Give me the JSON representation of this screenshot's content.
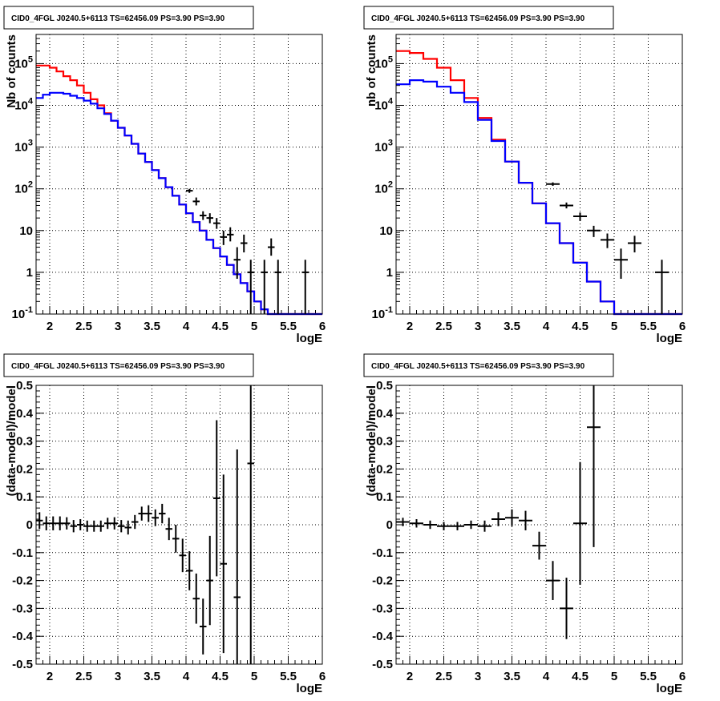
{
  "chart_data": [
    {
      "type": "line",
      "title": "CID0_4FGL J0240.5+6113 TS=62456.09 PS=3.90 PS=3.90",
      "xlabel": "logE",
      "ylabel": "Nb of counts",
      "xlim": [
        1.8,
        6
      ],
      "ylim": [
        0.1,
        500000
      ],
      "yscale": "log",
      "grid": true,
      "x_ticks": [
        "2",
        "2.5",
        "3",
        "3.5",
        "4",
        "4.5",
        "5",
        "5.5",
        "6"
      ],
      "y_ticks": [
        "10^-1",
        "1",
        "10",
        "10^2",
        "10^3",
        "10^4",
        "10^5"
      ],
      "bin_edges": [
        1.8,
        1.9,
        2.0,
        2.1,
        2.2,
        2.3,
        2.4,
        2.5,
        2.6,
        2.7,
        2.8,
        2.9,
        3.0,
        3.1,
        3.2,
        3.3,
        3.4,
        3.5,
        3.6,
        3.7,
        3.8,
        3.9,
        4.0,
        4.1,
        4.2,
        4.3,
        4.4,
        4.5,
        4.6,
        4.7,
        4.8,
        4.9,
        5.0,
        5.1,
        5.2,
        5.3,
        5.4,
        5.5,
        5.6,
        5.7,
        5.8,
        5.9,
        6.0
      ],
      "series": [
        {
          "color": "#ff0000",
          "values": [
            90000,
            90000,
            80000,
            65000,
            50000,
            40000,
            30000,
            20000,
            14000,
            10000,
            6500,
            4300,
            2900,
            1900,
            1200,
            700,
            440,
            280,
            180,
            110,
            68,
            42,
            26,
            16,
            10,
            6,
            3.8,
            2.4,
            1.5,
            0.9,
            0.55,
            0.35,
            0.2,
            0.13,
            0.1,
            0.1,
            0.1,
            0.1,
            0.1,
            0.1,
            0.1,
            0.1
          ]
        },
        {
          "color": "#0000ff",
          "values": [
            15000,
            18000,
            20000,
            20000,
            19000,
            17000,
            15000,
            13000,
            11000,
            8500,
            6200,
            4300,
            2900,
            1900,
            1200,
            700,
            440,
            280,
            180,
            110,
            68,
            42,
            26,
            16,
            10,
            6,
            3.8,
            2.4,
            1.5,
            0.9,
            0.55,
            0.35,
            0.2,
            0.13,
            0.1,
            0.1,
            0.1,
            0.1,
            0.1,
            0.1,
            0.1,
            0.1
          ]
        }
      ],
      "data_points": [
        {
          "x": 4.05,
          "y": 90,
          "yerr": [
            80,
            100
          ]
        },
        {
          "x": 4.15,
          "y": 50,
          "yerr": [
            40,
            62
          ]
        },
        {
          "x": 4.25,
          "y": 23,
          "yerr": [
            18,
            29
          ]
        },
        {
          "x": 4.35,
          "y": 20,
          "yerr": [
            15,
            26
          ]
        },
        {
          "x": 4.45,
          "y": 15,
          "yerr": [
            11,
            20
          ]
        },
        {
          "x": 4.55,
          "y": 7,
          "yerr": [
            4.5,
            10
          ]
        },
        {
          "x": 4.65,
          "y": 8,
          "yerr": [
            5.5,
            12
          ]
        },
        {
          "x": 4.75,
          "y": 2,
          "yerr": [
            0.7,
            4
          ]
        },
        {
          "x": 4.85,
          "y": 5,
          "yerr": [
            3,
            8
          ]
        },
        {
          "x": 4.95,
          "y": 1,
          "yerr": [
            0.1,
            2
          ]
        },
        {
          "x": 5.15,
          "y": 1,
          "yerr": [
            0.1,
            2
          ]
        },
        {
          "x": 5.25,
          "y": 4,
          "yerr": [
            2.5,
            6.5
          ]
        },
        {
          "x": 5.35,
          "y": 1,
          "yerr": [
            0.1,
            2
          ]
        },
        {
          "x": 5.75,
          "y": 1,
          "yerr": [
            0.1,
            2
          ]
        }
      ]
    },
    {
      "type": "line",
      "title": "CID0_4FGL J0240.5+6113 TS=62456.09 PS=3.90 PS=3.90",
      "xlabel": "logE",
      "ylabel": "nb of counts",
      "xlim": [
        1.8,
        6
      ],
      "ylim": [
        0.1,
        500000
      ],
      "yscale": "log",
      "grid": true,
      "x_ticks": [
        "2",
        "2.5",
        "3",
        "3.5",
        "4",
        "4.5",
        "5",
        "5.5",
        "6"
      ],
      "y_ticks": [
        "10^-1",
        "1",
        "10",
        "10^2",
        "10^3",
        "10^4",
        "10^5"
      ],
      "bin_edges": [
        1.8,
        2.0,
        2.2,
        2.4,
        2.6,
        2.8,
        3.0,
        3.2,
        3.4,
        3.6,
        3.8,
        4.0,
        4.2,
        4.4,
        4.6,
        4.8,
        5.0,
        5.2,
        5.4,
        5.6,
        5.8,
        6.0
      ],
      "series": [
        {
          "color": "#ff0000",
          "values": [
            200000,
            180000,
            130000,
            80000,
            40000,
            15000,
            5000,
            1500,
            450,
            140,
            45,
            15,
            5,
            1.7,
            0.6,
            0.2,
            0.1,
            0.1,
            0.1,
            0.1,
            0.1
          ]
        },
        {
          "color": "#0000ff",
          "values": [
            32000,
            40000,
            37000,
            28000,
            20000,
            12000,
            4500,
            1400,
            450,
            140,
            45,
            15,
            5,
            1.7,
            0.6,
            0.2,
            0.1,
            0.1,
            0.1,
            0.1,
            0.1
          ]
        }
      ],
      "data_points": [
        {
          "x": 4.1,
          "y": 130,
          "yerr": [
            118,
            143
          ]
        },
        {
          "x": 4.3,
          "y": 40,
          "yerr": [
            34,
            47
          ]
        },
        {
          "x": 4.5,
          "y": 22,
          "yerr": [
            17,
            27
          ]
        },
        {
          "x": 4.7,
          "y": 10,
          "yerr": [
            7,
            13
          ]
        },
        {
          "x": 4.9,
          "y": 6,
          "yerr": [
            3.8,
            8.5
          ]
        },
        {
          "x": 5.1,
          "y": 2,
          "yerr": [
            0.7,
            3.7
          ]
        },
        {
          "x": 5.3,
          "y": 5,
          "yerr": [
            3,
            7.5
          ]
        },
        {
          "x": 5.7,
          "y": 1,
          "yerr": [
            0.1,
            2
          ]
        }
      ]
    },
    {
      "type": "scatter",
      "title": "CID0_4FGL J0240.5+6113 TS=62456.09 PS=3.90 PS=3.90",
      "xlabel": "logE",
      "ylabel": "(data-model)/model",
      "xlim": [
        1.8,
        6
      ],
      "ylim": [
        -0.5,
        0.5
      ],
      "grid": true,
      "x_ticks": [
        "2",
        "2.5",
        "3",
        "3.5",
        "4",
        "4.5",
        "5",
        "5.5",
        "6"
      ],
      "y_ticks": [
        "-0.5",
        "-0.4",
        "-0.3",
        "-0.2",
        "-0.1",
        "0",
        "0.1",
        "0.2",
        "0.3",
        "0.4",
        "0.5"
      ],
      "xerr": 0.05,
      "points": [
        {
          "x": 1.85,
          "y": 0.015,
          "yerr": 0.03
        },
        {
          "x": 1.95,
          "y": 0.005,
          "yerr": 0.025
        },
        {
          "x": 2.05,
          "y": 0.005,
          "yerr": 0.025
        },
        {
          "x": 2.15,
          "y": 0.005,
          "yerr": 0.025
        },
        {
          "x": 2.25,
          "y": 0.005,
          "yerr": 0.022
        },
        {
          "x": 2.35,
          "y": -0.005,
          "yerr": 0.022
        },
        {
          "x": 2.45,
          "y": 0.0,
          "yerr": 0.02
        },
        {
          "x": 2.55,
          "y": -0.005,
          "yerr": 0.02
        },
        {
          "x": 2.65,
          "y": -0.005,
          "yerr": 0.02
        },
        {
          "x": 2.75,
          "y": -0.005,
          "yerr": 0.02
        },
        {
          "x": 2.85,
          "y": 0.005,
          "yerr": 0.02
        },
        {
          "x": 2.95,
          "y": 0.005,
          "yerr": 0.022
        },
        {
          "x": 3.05,
          "y": -0.005,
          "yerr": 0.022
        },
        {
          "x": 3.15,
          "y": -0.01,
          "yerr": 0.025
        },
        {
          "x": 3.25,
          "y": 0.01,
          "yerr": 0.025
        },
        {
          "x": 3.35,
          "y": 0.04,
          "yerr": 0.025
        },
        {
          "x": 3.45,
          "y": 0.04,
          "yerr": 0.03
        },
        {
          "x": 3.55,
          "y": 0.025,
          "yerr": 0.03
        },
        {
          "x": 3.65,
          "y": 0.04,
          "yerr": 0.035
        },
        {
          "x": 3.75,
          "y": -0.015,
          "yerr": 0.04
        },
        {
          "x": 3.85,
          "y": -0.05,
          "yerr": 0.05
        },
        {
          "x": 3.95,
          "y": -0.11,
          "yerr": 0.06
        },
        {
          "x": 4.05,
          "y": -0.165,
          "yerr": 0.07
        },
        {
          "x": 4.15,
          "y": -0.265,
          "yerr": 0.09
        },
        {
          "x": 4.25,
          "y": -0.365,
          "yerr": 0.1
        },
        {
          "x": 4.35,
          "y": -0.2,
          "yerr": 0.16
        },
        {
          "x": 4.45,
          "y": 0.095,
          "yerr": 0.28
        },
        {
          "x": 4.55,
          "y": -0.14,
          "yerr": 0.32
        },
        {
          "x": 4.75,
          "y": -0.26,
          "yerr": 0.53
        },
        {
          "x": 4.95,
          "y": 0.22,
          "yerr": 0.8
        }
      ]
    },
    {
      "type": "scatter",
      "title": "CID0_4FGL J0240.5+6113 TS=62456.09 PS=3.90 PS=3.90",
      "xlabel": "logE",
      "ylabel": "(data-model)/model",
      "xlim": [
        1.8,
        6
      ],
      "ylim": [
        -0.5,
        0.5
      ],
      "grid": true,
      "x_ticks": [
        "2",
        "2.5",
        "3",
        "3.5",
        "4",
        "4.5",
        "5",
        "5.5",
        "6"
      ],
      "y_ticks": [
        "-0.5",
        "-0.4",
        "-0.3",
        "-0.2",
        "-0.1",
        "0",
        "0.1",
        "0.2",
        "0.3",
        "0.4",
        "0.5"
      ],
      "xerr": 0.1,
      "points": [
        {
          "x": 1.9,
          "y": 0.01,
          "yerr": 0.015
        },
        {
          "x": 2.1,
          "y": 0.005,
          "yerr": 0.015
        },
        {
          "x": 2.3,
          "y": 0.0,
          "yerr": 0.015
        },
        {
          "x": 2.5,
          "y": -0.005,
          "yerr": 0.015
        },
        {
          "x": 2.7,
          "y": -0.005,
          "yerr": 0.015
        },
        {
          "x": 2.9,
          "y": 0.0,
          "yerr": 0.015
        },
        {
          "x": 3.1,
          "y": -0.005,
          "yerr": 0.02
        },
        {
          "x": 3.3,
          "y": 0.02,
          "yerr": 0.025
        },
        {
          "x": 3.5,
          "y": 0.025,
          "yerr": 0.03
        },
        {
          "x": 3.7,
          "y": 0.015,
          "yerr": 0.035
        },
        {
          "x": 3.9,
          "y": -0.075,
          "yerr": 0.05
        },
        {
          "x": 4.1,
          "y": -0.2,
          "yerr": 0.07
        },
        {
          "x": 4.3,
          "y": -0.3,
          "yerr": 0.11
        },
        {
          "x": 4.5,
          "y": 0.005,
          "yerr": 0.22
        },
        {
          "x": 4.7,
          "y": 0.35,
          "yerr": 0.43
        }
      ]
    }
  ]
}
